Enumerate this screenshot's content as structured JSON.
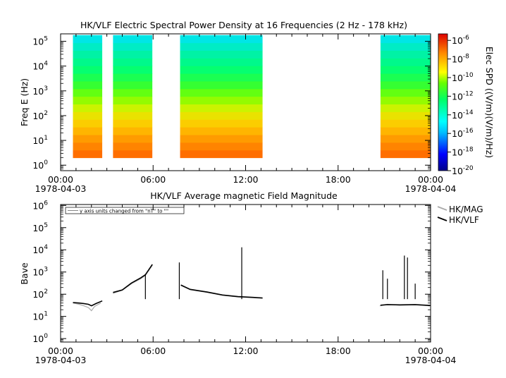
{
  "chart_data": [
    {
      "type": "heatmap",
      "title": "HK/VLF  Electric Spectral Power Density at 16 Frequencies (2 Hz - 178 kHz)",
      "ylabel": "Freq E (Hz)",
      "yscale": "log",
      "ylim": [
        0.6,
        200000
      ],
      "y_ticks": [
        {
          "value": 1,
          "label": "10",
          "exp": "0"
        },
        {
          "value": 10,
          "label": "10",
          "exp": "1"
        },
        {
          "value": 100,
          "label": "10",
          "exp": "2"
        },
        {
          "value": 1000,
          "label": "10",
          "exp": "3"
        },
        {
          "value": 10000,
          "label": "10",
          "exp": "4"
        },
        {
          "value": 100000,
          "label": "10",
          "exp": "5"
        }
      ],
      "x_ticks": [
        {
          "hours": 0,
          "label": "00:00",
          "date": "1978-04-03"
        },
        {
          "hours": 6,
          "label": "06:00",
          "date": ""
        },
        {
          "hours": 12,
          "label": "12:00",
          "date": ""
        },
        {
          "hours": 18,
          "label": "18:00",
          "date": ""
        },
        {
          "hours": 24,
          "label": "00:00",
          "date": "1978-04-04"
        }
      ],
      "xlim_hours": [
        0,
        24
      ],
      "frequency_range_hz": [
        2,
        178000
      ],
      "data_intervals_hours": [
        [
          0.8,
          2.7
        ],
        [
          3.4,
          5.95
        ],
        [
          7.75,
          13.1
        ],
        [
          20.75,
          24.0
        ]
      ],
      "colorbar": {
        "label": "Elec SPD ((V/m)(V/m)/Hz)",
        "range_exp": [
          -20,
          -5.3
        ],
        "ticks": [
          {
            "label": "10",
            "exp": "-6",
            "value": -6
          },
          {
            "label": "10",
            "exp": "-8",
            "value": -8
          },
          {
            "label": "10",
            "exp": "-10",
            "value": -10
          },
          {
            "label": "10",
            "exp": "-12",
            "value": -12
          },
          {
            "label": "10",
            "exp": "-14",
            "value": -14
          },
          {
            "label": "10",
            "exp": "-16",
            "value": -16
          },
          {
            "label": "10",
            "exp": "-18",
            "value": -18
          },
          {
            "label": "10",
            "exp": "-20",
            "value": -20
          }
        ]
      }
    },
    {
      "type": "line",
      "title": "HK/VLF  Average magnetic Field Magnitude",
      "ylabel": "Bave",
      "yscale": "log",
      "ylim": [
        0.7,
        1100000
      ],
      "annotation": "y axis units changed from \"nT\" to \"\"",
      "y_ticks": [
        {
          "value": 1,
          "label": "10",
          "exp": "0"
        },
        {
          "value": 10,
          "label": "10",
          "exp": "1"
        },
        {
          "value": 100,
          "label": "10",
          "exp": "2"
        },
        {
          "value": 1000,
          "label": "10",
          "exp": "3"
        },
        {
          "value": 10000,
          "label": "10",
          "exp": "4"
        },
        {
          "value": 100000,
          "label": "10",
          "exp": "5"
        },
        {
          "value": 1000000,
          "label": "10",
          "exp": "6"
        }
      ],
      "x_ticks": [
        {
          "hours": 0,
          "label": "00:00",
          "date": "1978-04-03"
        },
        {
          "hours": 6,
          "label": "06:00",
          "date": ""
        },
        {
          "hours": 12,
          "label": "12:00",
          "date": ""
        },
        {
          "hours": 18,
          "label": "18:00",
          "date": ""
        },
        {
          "hours": 24,
          "label": "00:00",
          "date": "1978-04-04"
        }
      ],
      "xlim_hours": [
        0,
        24
      ],
      "legend": {
        "placement": "right-top"
      },
      "series": [
        {
          "name": "HK/MAG",
          "color": "#aaaaaa",
          "segments": [
            [
              [
                0.8,
                40
              ],
              [
                1.2,
                35
              ],
              [
                1.5,
                30
              ],
              [
                1.8,
                25
              ],
              [
                2.0,
                18
              ],
              [
                2.2,
                28
              ],
              [
                2.6,
                40
              ]
            ],
            [
              [
                3.4,
                110
              ],
              [
                4.0,
                150
              ],
              [
                4.6,
                300
              ],
              [
                5.2,
                500
              ],
              [
                5.5,
                700
              ],
              [
                5.95,
                2000
              ]
            ],
            [
              [
                7.8,
                250
              ],
              [
                8.4,
                160
              ],
              [
                9.5,
                120
              ],
              [
                10.5,
                90
              ],
              [
                11.5,
                75
              ],
              [
                12.5,
                70
              ],
              [
                13.1,
                65
              ]
            ],
            [
              [
                20.7,
                30
              ],
              [
                21.2,
                35
              ],
              [
                22.0,
                32
              ],
              [
                23.0,
                33
              ],
              [
                24.0,
                30
              ]
            ]
          ]
        },
        {
          "name": "HK/VLF",
          "color": "#000000",
          "segments": [
            [
              [
                0.8,
                42
              ],
              [
                1.2,
                40
              ],
              [
                1.5,
                38
              ],
              [
                1.8,
                35
              ],
              [
                2.0,
                30
              ],
              [
                2.3,
                38
              ],
              [
                2.7,
                50
              ]
            ],
            [
              [
                3.4,
                120
              ],
              [
                4.0,
                155
              ],
              [
                4.6,
                320
              ],
              [
                5.2,
                550
              ],
              [
                5.5,
                750
              ],
              [
                5.95,
                2200
              ]
            ],
            [
              [
                7.8,
                260
              ],
              [
                8.4,
                165
              ],
              [
                9.5,
                125
              ],
              [
                10.5,
                92
              ],
              [
                11.5,
                78
              ],
              [
                12.5,
                72
              ],
              [
                13.1,
                68
              ]
            ],
            [
              [
                20.75,
                32
              ],
              [
                21.2,
                34
              ],
              [
                22.0,
                33
              ],
              [
                23.0,
                34
              ],
              [
                24.0,
                31
              ]
            ]
          ],
          "spikes": [
            [
              5.5,
              800
            ],
            [
              7.7,
              2700
            ],
            [
              11.75,
              13000
            ],
            [
              20.9,
              1200
            ],
            [
              21.2,
              500
            ],
            [
              22.3,
              5500
            ],
            [
              22.5,
              4500
            ],
            [
              23.0,
              300
            ]
          ]
        }
      ]
    }
  ]
}
